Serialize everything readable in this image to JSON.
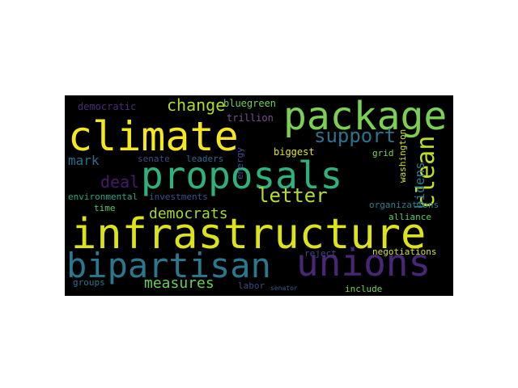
{
  "word_cloud": {
    "background": "#000000",
    "words": [
      {
        "key": "infrastructure",
        "text": "infrastructure",
        "color": "#dde318"
      },
      {
        "key": "proposals",
        "text": "proposals",
        "color": "#2db27d"
      },
      {
        "key": "climate",
        "text": "climate",
        "color": "#f5e61f"
      },
      {
        "key": "package",
        "text": "package",
        "color": "#7ad151"
      },
      {
        "key": "bipartisan",
        "text": "bipartisan",
        "color": "#2a788e"
      },
      {
        "key": "unions",
        "text": "unions",
        "color": "#482777"
      },
      {
        "key": "clean",
        "text": "clean",
        "color": "#c2df23"
      },
      {
        "key": "letter",
        "text": "letter",
        "color": "#b5de2b"
      },
      {
        "key": "support",
        "text": "support",
        "color": "#2c728e"
      },
      {
        "key": "change",
        "text": "change",
        "color": "#addc30"
      },
      {
        "key": "democrats",
        "text": "democrats",
        "color": "#9fda3a"
      },
      {
        "key": "measures",
        "text": "measures",
        "color": "#6ccd5a"
      },
      {
        "key": "deal",
        "text": "deal",
        "color": "#48196b"
      },
      {
        "key": "mark",
        "text": "mark",
        "color": "#2e6e8e"
      },
      {
        "key": "bidens",
        "text": "bidens",
        "color": "#2a788e"
      },
      {
        "key": "democratic",
        "text": "democratic",
        "color": "#472d7b"
      },
      {
        "key": "bluegreen",
        "text": "bluegreen",
        "color": "#6ece58"
      },
      {
        "key": "trillion",
        "text": "trillion",
        "color": "#7e4e90"
      },
      {
        "key": "senate",
        "text": "senate",
        "color": "#3e4a89"
      },
      {
        "key": "leaders",
        "text": "leaders",
        "color": "#31688e"
      },
      {
        "key": "energy",
        "text": "energy",
        "color": "#3b528b"
      },
      {
        "key": "biggest",
        "text": "biggest",
        "color": "#e2e418"
      },
      {
        "key": "grid",
        "text": "grid",
        "color": "#7ad151"
      },
      {
        "key": "washington",
        "text": "washington",
        "color": "#d2e21b"
      },
      {
        "key": "environmental",
        "text": "environmental",
        "color": "#22a785"
      },
      {
        "key": "investments",
        "text": "investments",
        "color": "#3b528b"
      },
      {
        "key": "time",
        "text": "time",
        "color": "#5ec962"
      },
      {
        "key": "organizations",
        "text": "organizations",
        "color": "#25848e"
      },
      {
        "key": "alliance",
        "text": "alliance",
        "color": "#5ec962"
      },
      {
        "key": "reject",
        "text": "reject",
        "color": "#404688"
      },
      {
        "key": "negotiations",
        "text": "negotiations",
        "color": "#d2e21b"
      },
      {
        "key": "groups",
        "text": "groups",
        "color": "#2c728e"
      },
      {
        "key": "labor",
        "text": "labor",
        "color": "#3e4a89"
      },
      {
        "key": "senator",
        "text": "senator",
        "color": "#355f8d"
      },
      {
        "key": "include",
        "text": "include",
        "color": "#7ad151"
      }
    ]
  }
}
